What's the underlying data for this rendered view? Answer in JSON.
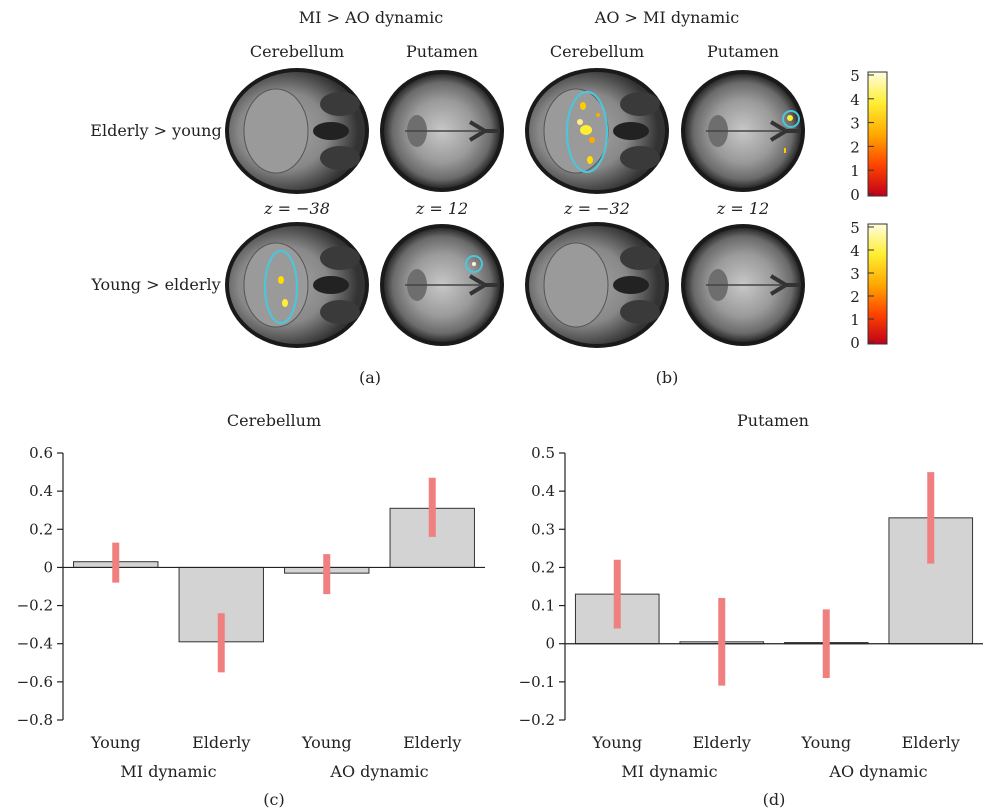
{
  "panel_a": {
    "header": "MI > AO dynamic",
    "columns": [
      "Cerebellum",
      "Putamen"
    ],
    "slices": [
      "z = −38",
      "z = 12"
    ],
    "label": "(a)"
  },
  "panel_b": {
    "header": "AO > MI dynamic",
    "columns": [
      "Cerebellum",
      "Putamen"
    ],
    "slices": [
      "z = −32",
      "z = 12"
    ],
    "label": "(b)"
  },
  "row_labels": [
    "Elderly > young",
    "Young > elderly"
  ],
  "colorbar": {
    "ticks": [
      "5",
      "4",
      "3",
      "2",
      "1",
      "0"
    ],
    "colors": [
      "#fffde0",
      "#ffee33",
      "#ffaa00",
      "#ff4400",
      "#c0001a"
    ]
  },
  "colors": {
    "bar_fill": "#d3d3d3",
    "bar_stroke": "#333333",
    "error_bar": "#f08080",
    "roi_circle": "#4cc6d8"
  },
  "chart_data": [
    {
      "type": "bar",
      "title": "Cerebellum",
      "panel_label": "(c)",
      "categories": [
        "Young",
        "Elderly",
        "Young",
        "Elderly"
      ],
      "groups": [
        "MI dynamic",
        "AO dynamic"
      ],
      "values": [
        0.03,
        -0.39,
        -0.03,
        0.31
      ],
      "error_low": [
        -0.08,
        -0.55,
        -0.14,
        0.16
      ],
      "error_high": [
        0.13,
        -0.24,
        0.07,
        0.47
      ],
      "ylim": [
        -0.8,
        0.6
      ],
      "yticks": [
        0.6,
        0.4,
        0.2,
        0,
        -0.2,
        -0.4,
        -0.6,
        -0.8
      ],
      "ytick_labels": [
        "0.6",
        "0.4",
        "0.2",
        "0",
        "−0.2",
        "−0.4",
        "−0.6",
        "−0.8"
      ]
    },
    {
      "type": "bar",
      "title": "Putamen",
      "panel_label": "(d)",
      "categories": [
        "Young",
        "Elderly",
        "Young",
        "Elderly"
      ],
      "groups": [
        "MI dynamic",
        "AO dynamic"
      ],
      "values": [
        0.13,
        0.005,
        0.003,
        0.33
      ],
      "error_low": [
        0.04,
        -0.11,
        -0.09,
        0.21
      ],
      "error_high": [
        0.22,
        0.12,
        0.09,
        0.45
      ],
      "ylim": [
        -0.2,
        0.5
      ],
      "yticks": [
        0.5,
        0.4,
        0.3,
        0.2,
        0.1,
        0,
        -0.1,
        -0.2
      ],
      "ytick_labels": [
        "0.5",
        "0.4",
        "0.3",
        "0.2",
        "0.1",
        "0",
        "−0.1",
        "−0.2"
      ]
    }
  ]
}
